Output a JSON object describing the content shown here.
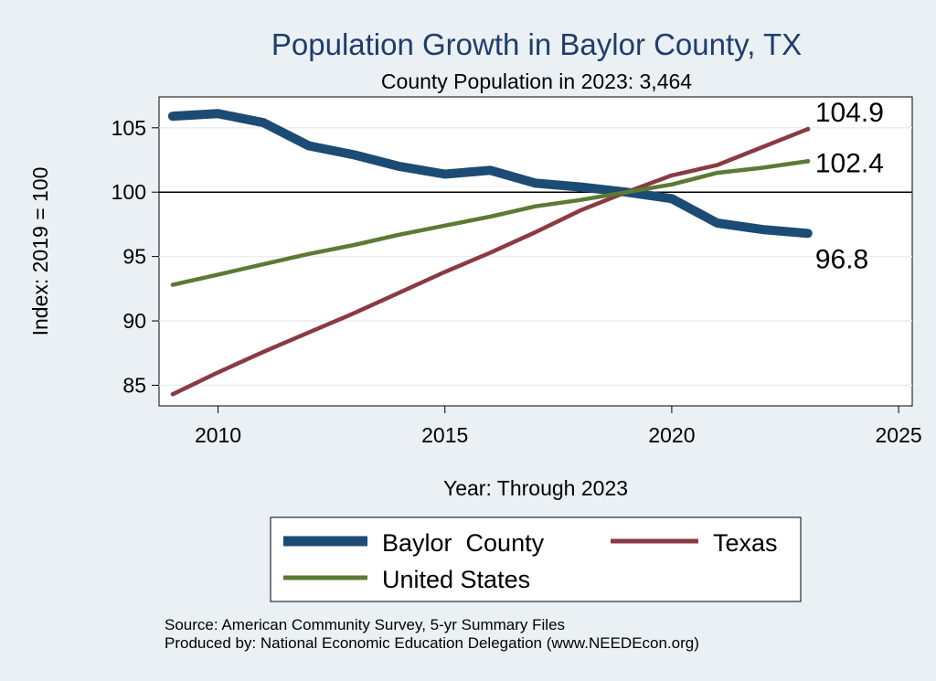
{
  "chart_data": {
    "type": "line",
    "title": "Population Growth in Baylor County, TX",
    "subtitle": "County Population in 2023: 3,464",
    "xlabel": "Year: Through 2023",
    "ylabel": "Index: 2019 = 100",
    "xlim": [
      2008.7,
      2025.3
    ],
    "ylim": [
      83.4,
      107.4
    ],
    "x_ticks": [
      2010,
      2015,
      2020,
      2025
    ],
    "y_ticks": [
      85,
      90,
      95,
      100,
      105
    ],
    "reference_line": 100,
    "grid": true,
    "x": [
      2009,
      2010,
      2011,
      2012,
      2013,
      2014,
      2015,
      2016,
      2017,
      2018,
      2019,
      2020,
      2021,
      2022,
      2023
    ],
    "series": [
      {
        "name": "Baylor  County",
        "color": "#1c4b73",
        "values": [
          105.9,
          106.1,
          105.4,
          103.6,
          102.9,
          102.0,
          101.4,
          101.7,
          100.7,
          100.4,
          100.0,
          99.5,
          97.6,
          97.1,
          96.8
        ],
        "end_label": "96.8"
      },
      {
        "name": "Texas",
        "color": "#8b3a42",
        "values": [
          84.3,
          86.0,
          87.6,
          89.1,
          90.6,
          92.2,
          93.8,
          95.3,
          96.9,
          98.6,
          100.0,
          101.3,
          102.1,
          103.5,
          104.9
        ],
        "end_label": "104.9"
      },
      {
        "name": "United States",
        "color": "#5b7a35",
        "values": [
          92.8,
          93.6,
          94.4,
          95.2,
          95.9,
          96.7,
          97.4,
          98.1,
          98.9,
          99.4,
          100.0,
          100.6,
          101.5,
          101.9,
          102.4
        ],
        "end_label": "102.4"
      }
    ],
    "legend_position": "bottom",
    "source": "Source: American Community Survey, 5-yr Summary Files",
    "producer": "Produced by: National Economic Education Delegation (www.NEEDEcon.org)"
  }
}
